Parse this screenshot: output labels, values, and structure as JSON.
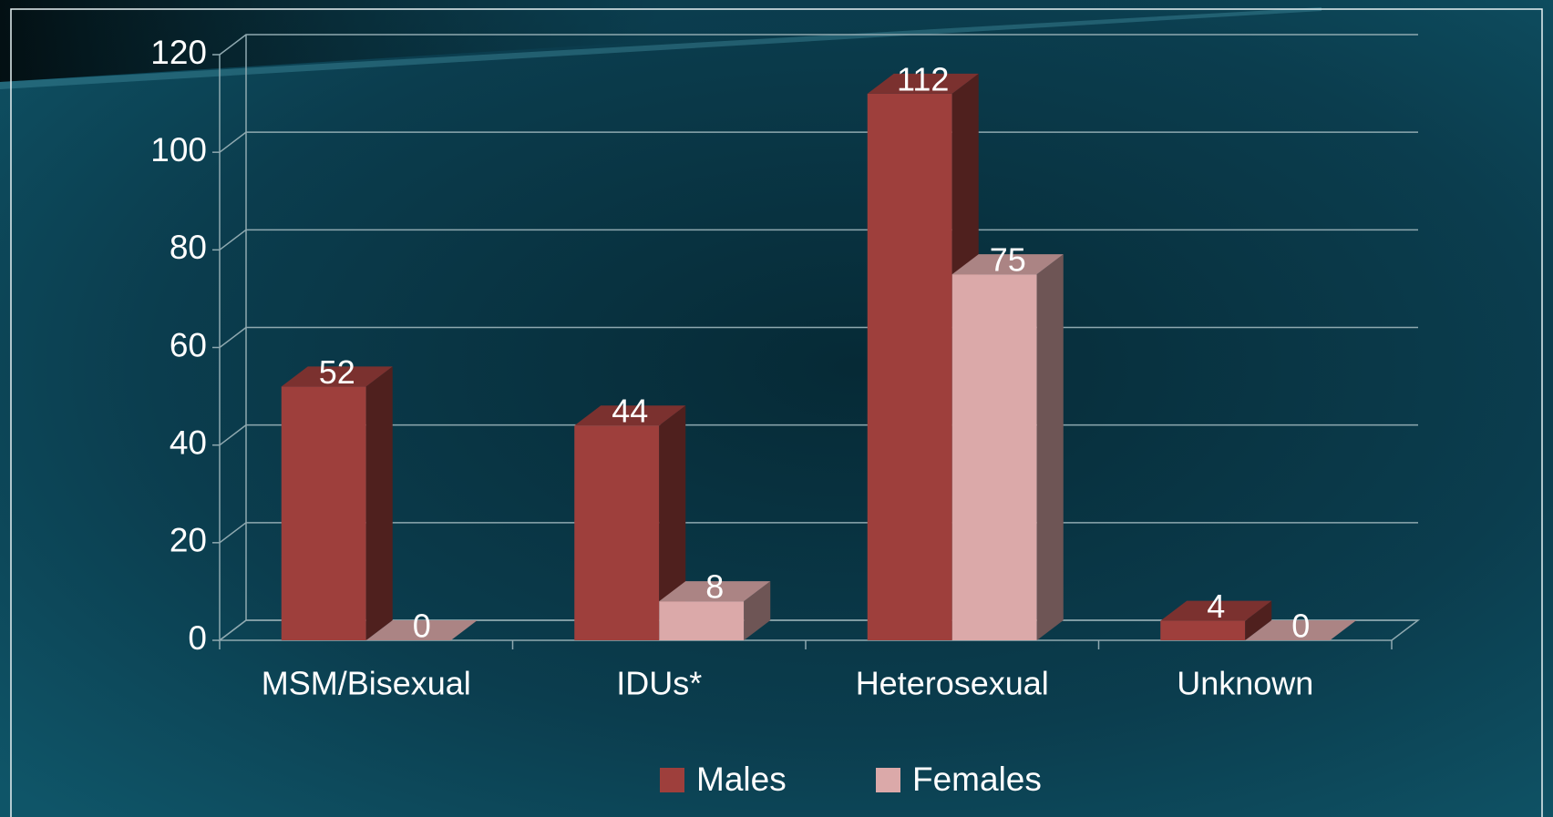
{
  "chart_data": {
    "type": "bar3d",
    "categories": [
      "MSM/Bisexual",
      "IDUs*",
      "Heterosexual",
      "Unknown"
    ],
    "series": [
      {
        "name": "Males",
        "color": "#9e3f3c",
        "values": [
          52,
          44,
          112,
          4
        ]
      },
      {
        "name": "Females",
        "color": "#dba9a9",
        "values": [
          0,
          8,
          75,
          0
        ]
      }
    ],
    "ylim": [
      0,
      120
    ],
    "yticks": [
      0,
      20,
      40,
      60,
      80,
      100,
      120
    ],
    "grid": true,
    "legend": "bottom"
  }
}
